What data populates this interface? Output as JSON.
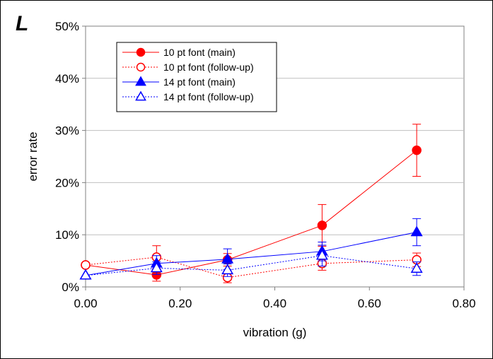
{
  "panel_label": "L",
  "colors": {
    "red": "#ff0000",
    "blue": "#0000ff",
    "grid": "#c0c0c0",
    "axis": "#808080"
  },
  "chart_data": {
    "type": "scatter",
    "xlabel": "vibration (g)",
    "ylabel": "error rate",
    "xlim": [
      0,
      0.8
    ],
    "ylim": [
      0,
      0.5
    ],
    "x_ticks": [
      {
        "value": 0.0,
        "label": "0.00"
      },
      {
        "value": 0.2,
        "label": "0.20"
      },
      {
        "value": 0.4,
        "label": "0.40"
      },
      {
        "value": 0.6,
        "label": "0.60"
      },
      {
        "value": 0.8,
        "label": "0.80"
      }
    ],
    "y_ticks": [
      {
        "value": 0.0,
        "label": "0%"
      },
      {
        "value": 0.1,
        "label": "10%"
      },
      {
        "value": 0.2,
        "label": "20%"
      },
      {
        "value": 0.3,
        "label": "30%"
      },
      {
        "value": 0.4,
        "label": "40%"
      },
      {
        "value": 0.5,
        "label": "50%"
      }
    ],
    "grid": "horizontal",
    "legend_position": "top-left",
    "series": [
      {
        "name": "10 pt font (main)",
        "color": "#ff0000",
        "marker": "circle",
        "filled": true,
        "line": "solid",
        "x": [
          0.0,
          0.15,
          0.3,
          0.5,
          0.7
        ],
        "y": [
          0.042,
          0.023,
          0.052,
          0.118,
          0.262
        ],
        "err": [
          0.0,
          0.012,
          0.012,
          0.04,
          0.05
        ]
      },
      {
        "name": "10 pt font (follow-up)",
        "color": "#ff0000",
        "marker": "circle",
        "filled": false,
        "line": "dotted",
        "x": [
          0.0,
          0.15,
          0.3,
          0.5,
          0.7
        ],
        "y": [
          0.042,
          0.057,
          0.018,
          0.045,
          0.052
        ],
        "err": [
          0.0,
          0.022,
          0.01,
          0.013,
          0.013
        ]
      },
      {
        "name": "14 pt font (main)",
        "color": "#0000ff",
        "marker": "triangle",
        "filled": true,
        "line": "solid",
        "x": [
          0.0,
          0.15,
          0.3,
          0.5,
          0.7
        ],
        "y": [
          0.022,
          0.045,
          0.053,
          0.068,
          0.105
        ],
        "err": [
          0.0,
          0.015,
          0.02,
          0.018,
          0.026
        ]
      },
      {
        "name": "14 pt font (follow-up)",
        "color": "#0000ff",
        "marker": "triangle",
        "filled": false,
        "line": "dotted",
        "x": [
          0.0,
          0.15,
          0.3,
          0.5,
          0.7
        ],
        "y": [
          0.022,
          0.036,
          0.032,
          0.06,
          0.035
        ],
        "err": [
          0.0,
          0.012,
          0.012,
          0.02,
          0.013
        ]
      }
    ]
  }
}
